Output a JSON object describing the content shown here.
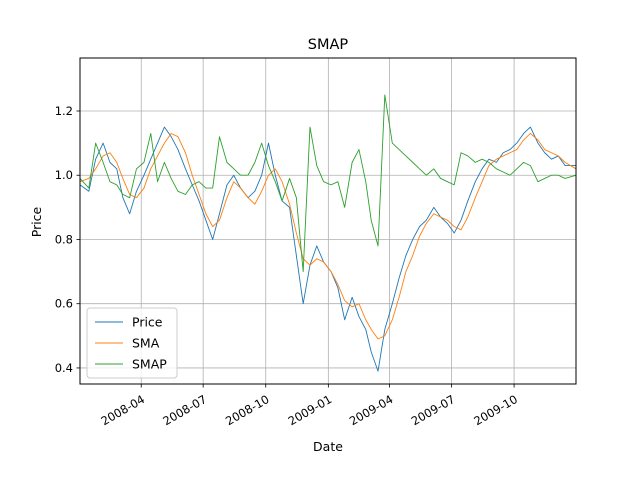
{
  "chart_data": {
    "type": "line",
    "title": "SMAP",
    "xlabel": "Date",
    "ylabel": "Price",
    "xlim": [
      "2008-01-02",
      "2009-12-31"
    ],
    "ylim": [
      0.35,
      1.365
    ],
    "x_ticks": [
      {
        "date": "2008-04-01",
        "label": "2008-04"
      },
      {
        "date": "2008-07-01",
        "label": "2008-07"
      },
      {
        "date": "2008-10-01",
        "label": "2008-10"
      },
      {
        "date": "2009-01-01",
        "label": "2009-01"
      },
      {
        "date": "2009-04-01",
        "label": "2009-04"
      },
      {
        "date": "2009-07-01",
        "label": "2009-07"
      },
      {
        "date": "2009-10-01",
        "label": "2009-10"
      }
    ],
    "y_ticks": [
      {
        "value": 0.4,
        "label": "0.4"
      },
      {
        "value": 0.6,
        "label": "0.6"
      },
      {
        "value": 0.8,
        "label": "0.8"
      },
      {
        "value": 1.0,
        "label": "1.0"
      },
      {
        "value": 1.2,
        "label": "1.2"
      }
    ],
    "grid": true,
    "legend_position": "lower-left",
    "series": [
      {
        "name": "Price",
        "color": "#1f77b4",
        "points": [
          [
            "2008-01-02",
            0.97
          ],
          [
            "2008-01-15",
            0.95
          ],
          [
            "2008-01-25",
            1.05
          ],
          [
            "2008-02-05",
            1.1
          ],
          [
            "2008-02-15",
            1.04
          ],
          [
            "2008-02-25",
            1.02
          ],
          [
            "2008-03-05",
            0.93
          ],
          [
            "2008-03-15",
            0.88
          ],
          [
            "2008-03-25",
            0.95
          ],
          [
            "2008-04-05",
            1.0
          ],
          [
            "2008-04-15",
            1.05
          ],
          [
            "2008-04-25",
            1.1
          ],
          [
            "2008-05-05",
            1.15
          ],
          [
            "2008-05-15",
            1.12
          ],
          [
            "2008-05-25",
            1.08
          ],
          [
            "2008-06-05",
            1.02
          ],
          [
            "2008-06-15",
            0.97
          ],
          [
            "2008-06-25",
            0.92
          ],
          [
            "2008-07-05",
            0.86
          ],
          [
            "2008-07-15",
            0.8
          ],
          [
            "2008-07-25",
            0.88
          ],
          [
            "2008-08-05",
            0.97
          ],
          [
            "2008-08-15",
            1.0
          ],
          [
            "2008-08-25",
            0.96
          ],
          [
            "2008-09-05",
            0.93
          ],
          [
            "2008-09-15",
            0.95
          ],
          [
            "2008-09-25",
            1.0
          ],
          [
            "2008-10-05",
            1.1
          ],
          [
            "2008-10-15",
            1.0
          ],
          [
            "2008-10-25",
            0.92
          ],
          [
            "2008-11-05",
            0.9
          ],
          [
            "2008-11-15",
            0.75
          ],
          [
            "2008-11-25",
            0.6
          ],
          [
            "2008-12-05",
            0.72
          ],
          [
            "2008-12-15",
            0.78
          ],
          [
            "2008-12-25",
            0.73
          ],
          [
            "2009-01-05",
            0.7
          ],
          [
            "2009-01-15",
            0.65
          ],
          [
            "2009-01-25",
            0.55
          ],
          [
            "2009-02-05",
            0.62
          ],
          [
            "2009-02-15",
            0.56
          ],
          [
            "2009-02-25",
            0.52
          ],
          [
            "2009-03-05",
            0.45
          ],
          [
            "2009-03-15",
            0.39
          ],
          [
            "2009-03-25",
            0.52
          ],
          [
            "2009-04-05",
            0.6
          ],
          [
            "2009-04-15",
            0.68
          ],
          [
            "2009-04-25",
            0.75
          ],
          [
            "2009-05-05",
            0.8
          ],
          [
            "2009-05-15",
            0.84
          ],
          [
            "2009-05-25",
            0.86
          ],
          [
            "2009-06-05",
            0.9
          ],
          [
            "2009-06-15",
            0.87
          ],
          [
            "2009-06-25",
            0.85
          ],
          [
            "2009-07-05",
            0.82
          ],
          [
            "2009-07-15",
            0.86
          ],
          [
            "2009-07-25",
            0.92
          ],
          [
            "2009-08-05",
            0.98
          ],
          [
            "2009-08-15",
            1.02
          ],
          [
            "2009-08-25",
            1.05
          ],
          [
            "2009-09-05",
            1.04
          ],
          [
            "2009-09-15",
            1.07
          ],
          [
            "2009-09-25",
            1.08
          ],
          [
            "2009-10-05",
            1.1
          ],
          [
            "2009-10-15",
            1.13
          ],
          [
            "2009-10-25",
            1.15
          ],
          [
            "2009-11-05",
            1.1
          ],
          [
            "2009-11-15",
            1.07
          ],
          [
            "2009-11-25",
            1.05
          ],
          [
            "2009-12-05",
            1.06
          ],
          [
            "2009-12-15",
            1.03
          ],
          [
            "2009-12-31",
            1.03
          ]
        ]
      },
      {
        "name": "SMA",
        "color": "#ff7f0e",
        "points": [
          [
            "2008-01-02",
            0.98
          ],
          [
            "2008-01-15",
            0.99
          ],
          [
            "2008-01-25",
            1.02
          ],
          [
            "2008-02-05",
            1.06
          ],
          [
            "2008-02-15",
            1.07
          ],
          [
            "2008-02-25",
            1.04
          ],
          [
            "2008-03-05",
            0.99
          ],
          [
            "2008-03-15",
            0.94
          ],
          [
            "2008-03-25",
            0.93
          ],
          [
            "2008-04-05",
            0.96
          ],
          [
            "2008-04-15",
            1.02
          ],
          [
            "2008-04-25",
            1.06
          ],
          [
            "2008-05-05",
            1.1
          ],
          [
            "2008-05-15",
            1.13
          ],
          [
            "2008-05-25",
            1.12
          ],
          [
            "2008-06-05",
            1.07
          ],
          [
            "2008-06-15",
            1.0
          ],
          [
            "2008-06-25",
            0.94
          ],
          [
            "2008-07-05",
            0.88
          ],
          [
            "2008-07-15",
            0.84
          ],
          [
            "2008-07-25",
            0.86
          ],
          [
            "2008-08-05",
            0.93
          ],
          [
            "2008-08-15",
            0.98
          ],
          [
            "2008-08-25",
            0.96
          ],
          [
            "2008-09-05",
            0.93
          ],
          [
            "2008-09-15",
            0.91
          ],
          [
            "2008-09-25",
            0.95
          ],
          [
            "2008-10-05",
            1.0
          ],
          [
            "2008-10-15",
            1.02
          ],
          [
            "2008-10-25",
            0.98
          ],
          [
            "2008-11-05",
            0.91
          ],
          [
            "2008-11-15",
            0.82
          ],
          [
            "2008-11-25",
            0.74
          ],
          [
            "2008-12-05",
            0.72
          ],
          [
            "2008-12-15",
            0.74
          ],
          [
            "2008-12-25",
            0.73
          ],
          [
            "2009-01-05",
            0.7
          ],
          [
            "2009-01-15",
            0.66
          ],
          [
            "2009-01-25",
            0.61
          ],
          [
            "2009-02-05",
            0.59
          ],
          [
            "2009-02-15",
            0.6
          ],
          [
            "2009-02-25",
            0.55
          ],
          [
            "2009-03-05",
            0.52
          ],
          [
            "2009-03-15",
            0.49
          ],
          [
            "2009-03-25",
            0.5
          ],
          [
            "2009-04-05",
            0.55
          ],
          [
            "2009-04-15",
            0.62
          ],
          [
            "2009-04-25",
            0.7
          ],
          [
            "2009-05-05",
            0.75
          ],
          [
            "2009-05-15",
            0.81
          ],
          [
            "2009-05-25",
            0.85
          ],
          [
            "2009-06-05",
            0.88
          ],
          [
            "2009-06-15",
            0.87
          ],
          [
            "2009-06-25",
            0.86
          ],
          [
            "2009-07-05",
            0.84
          ],
          [
            "2009-07-15",
            0.83
          ],
          [
            "2009-07-25",
            0.87
          ],
          [
            "2009-08-05",
            0.93
          ],
          [
            "2009-08-15",
            0.98
          ],
          [
            "2009-08-25",
            1.03
          ],
          [
            "2009-09-05",
            1.05
          ],
          [
            "2009-09-15",
            1.06
          ],
          [
            "2009-09-25",
            1.07
          ],
          [
            "2009-10-05",
            1.08
          ],
          [
            "2009-10-15",
            1.11
          ],
          [
            "2009-10-25",
            1.13
          ],
          [
            "2009-11-05",
            1.11
          ],
          [
            "2009-11-15",
            1.08
          ],
          [
            "2009-11-25",
            1.07
          ],
          [
            "2009-12-05",
            1.06
          ],
          [
            "2009-12-15",
            1.04
          ],
          [
            "2009-12-31",
            1.02
          ]
        ]
      },
      {
        "name": "SMAP",
        "color": "#2ca02c",
        "points": [
          [
            "2008-01-02",
            0.99
          ],
          [
            "2008-01-15",
            0.96
          ],
          [
            "2008-01-25",
            1.1
          ],
          [
            "2008-02-05",
            1.04
          ],
          [
            "2008-02-15",
            0.98
          ],
          [
            "2008-02-25",
            0.97
          ],
          [
            "2008-03-05",
            0.94
          ],
          [
            "2008-03-15",
            0.93
          ],
          [
            "2008-03-25",
            1.02
          ],
          [
            "2008-04-05",
            1.04
          ],
          [
            "2008-04-15",
            1.13
          ],
          [
            "2008-04-25",
            0.98
          ],
          [
            "2008-05-05",
            1.04
          ],
          [
            "2008-05-15",
            0.99
          ],
          [
            "2008-05-25",
            0.95
          ],
          [
            "2008-06-05",
            0.94
          ],
          [
            "2008-06-15",
            0.97
          ],
          [
            "2008-06-25",
            0.98
          ],
          [
            "2008-07-05",
            0.96
          ],
          [
            "2008-07-15",
            0.96
          ],
          [
            "2008-07-25",
            1.12
          ],
          [
            "2008-08-05",
            1.04
          ],
          [
            "2008-08-15",
            1.02
          ],
          [
            "2008-08-25",
            1.0
          ],
          [
            "2008-09-05",
            1.0
          ],
          [
            "2008-09-15",
            1.04
          ],
          [
            "2008-09-25",
            1.1
          ],
          [
            "2008-10-05",
            1.03
          ],
          [
            "2008-10-15",
            0.98
          ],
          [
            "2008-10-25",
            0.92
          ],
          [
            "2008-11-05",
            0.99
          ],
          [
            "2008-11-15",
            0.93
          ],
          [
            "2008-11-25",
            0.7
          ],
          [
            "2008-12-05",
            1.15
          ],
          [
            "2008-12-15",
            1.03
          ],
          [
            "2008-12-25",
            0.98
          ],
          [
            "2009-01-05",
            0.97
          ],
          [
            "2009-01-15",
            0.98
          ],
          [
            "2009-01-25",
            0.9
          ],
          [
            "2009-02-05",
            1.04
          ],
          [
            "2009-02-15",
            1.08
          ],
          [
            "2009-02-25",
            0.98
          ],
          [
            "2009-03-05",
            0.86
          ],
          [
            "2009-03-15",
            0.78
          ],
          [
            "2009-03-25",
            1.25
          ],
          [
            "2009-04-05",
            1.1
          ],
          [
            "2009-04-15",
            1.08
          ],
          [
            "2009-04-25",
            1.06
          ],
          [
            "2009-05-05",
            1.04
          ],
          [
            "2009-05-15",
            1.02
          ],
          [
            "2009-05-25",
            1.0
          ],
          [
            "2009-06-05",
            1.02
          ],
          [
            "2009-06-15",
            0.99
          ],
          [
            "2009-06-25",
            0.98
          ],
          [
            "2009-07-05",
            0.97
          ],
          [
            "2009-07-15",
            1.07
          ],
          [
            "2009-07-25",
            1.06
          ],
          [
            "2009-08-05",
            1.04
          ],
          [
            "2009-08-15",
            1.05
          ],
          [
            "2009-08-25",
            1.04
          ],
          [
            "2009-09-05",
            1.02
          ],
          [
            "2009-09-15",
            1.01
          ],
          [
            "2009-09-25",
            1.0
          ],
          [
            "2009-10-05",
            1.02
          ],
          [
            "2009-10-15",
            1.04
          ],
          [
            "2009-10-25",
            1.03
          ],
          [
            "2009-11-05",
            0.98
          ],
          [
            "2009-11-15",
            0.99
          ],
          [
            "2009-11-25",
            1.0
          ],
          [
            "2009-12-05",
            1.0
          ],
          [
            "2009-12-15",
            0.99
          ],
          [
            "2009-12-31",
            1.0
          ]
        ]
      }
    ]
  }
}
